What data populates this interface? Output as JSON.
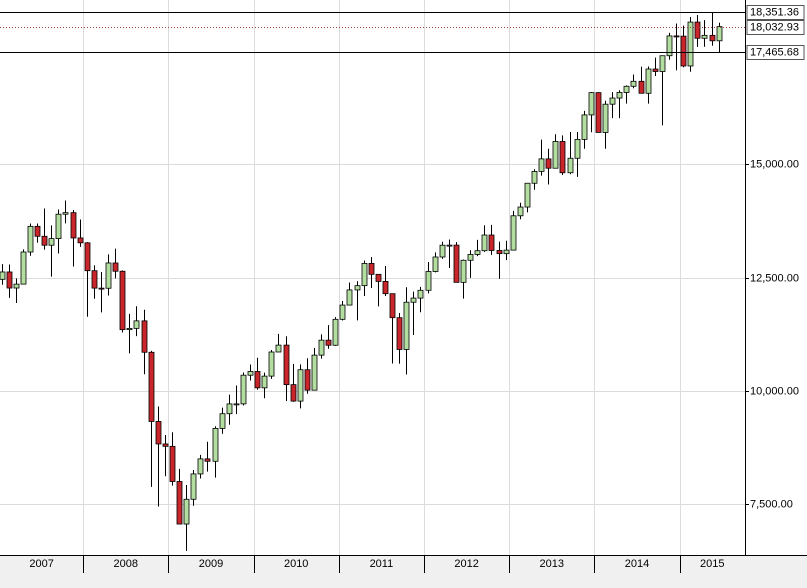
{
  "chart_data": {
    "type": "candlestick",
    "year_labels": [
      "2007",
      "2008",
      "2009",
      "2010",
      "2011",
      "2012",
      "2013",
      "2014",
      "2015"
    ],
    "open": [
      12460,
      12622,
      12268,
      12354,
      13062,
      13628,
      13409,
      13212,
      13358,
      13896,
      13930,
      13372,
      13265,
      12650,
      12266,
      12263,
      12820,
      12638,
      11350,
      11378,
      11544,
      10851,
      9325,
      8829,
      8776,
      8001,
      7063,
      7609,
      8168,
      8500,
      8447,
      9172,
      9496,
      9712,
      9713,
      10345,
      10428,
      10067,
      10325,
      10857,
      11009,
      10137,
      9774,
      10466,
      10015,
      10788,
      11118,
      11006,
      11578,
      11892,
      12226,
      12320,
      12811,
      12570,
      12414,
      12143,
      11614,
      10913,
      11955,
      12046,
      12218,
      12633,
      12952,
      13212,
      13214,
      12393,
      12880,
      13009,
      13091,
      13437,
      13096,
      13026,
      13104,
      13861,
      14054,
      14579,
      14840,
      15116,
      14910,
      15500,
      14810,
      15130,
      15546,
      16086,
      16577,
      15699,
      16322,
      16458,
      16581,
      16717,
      16827,
      16563,
      17098,
      17043,
      17391,
      17828,
      17823,
      17165,
      18133,
      17776,
      17841,
      17720
    ],
    "high": [
      12795,
      12786,
      12480,
      13120,
      13692,
      13692,
      14021,
      13650,
      14000,
      14198,
      13990,
      13778,
      13279,
      12767,
      12622,
      13010,
      13136,
      12657,
      11698,
      11867,
      11790,
      10882,
      9654,
      9026,
      9088,
      8280,
      7924,
      8254,
      8588,
      8877,
      9219,
      9630,
      9917,
      10119,
      10406,
      10580,
      10730,
      10401,
      10902,
      11258,
      11205,
      10594,
      10585,
      10719,
      10948,
      11245,
      11451,
      11625,
      11982,
      12391,
      12418,
      12876,
      12950,
      12570,
      12753,
      12143,
      11717,
      12284,
      12188,
      12293,
      12842,
      13055,
      13289,
      13338,
      13279,
      12898,
      13100,
      13331,
      13653,
      13661,
      13290,
      13311,
      13969,
      14149,
      14585,
      14888,
      15542,
      15340,
      15658,
      15634,
      15709,
      15710,
      16174,
      16588,
      16588,
      16398,
      16588,
      16631,
      16736,
      16978,
      17152,
      17153,
      17350,
      17395,
      17895,
      18103,
      18054,
      18244,
      18289,
      18175,
      18351.36,
      18118
    ],
    "low": [
      12341,
      12050,
      11939,
      12354,
      12980,
      13266,
      13115,
      12518,
      13029,
      13693,
      12743,
      13175,
      11634,
      12031,
      11731,
      12102,
      12480,
      11287,
      10827,
      11208,
      10365,
      7882,
      7449,
      8118,
      7909,
      7063,
      6470,
      7467,
      8066,
      8220,
      8087,
      9053,
      9252,
      9487,
      9676,
      10228,
      10025,
      9836,
      10265,
      10853,
      9774,
      9758,
      9614,
      9936,
      10014,
      10710,
      10929,
      10993,
      11551,
      11886,
      11555,
      12093,
      12269,
      11862,
      12093,
      10604,
      10597,
      10362,
      11231,
      11735,
      12150,
      12613,
      12910,
      12710,
      12391,
      12035,
      12492,
      12972,
      13066,
      12998,
      12471,
      12883,
      13104,
      13784,
      13937,
      14434,
      14746,
      14551,
      14910,
      14760,
      14777,
      14720,
      15340,
      15703,
      15699,
      15340,
      16016,
      16015,
      16334,
      16675,
      16563,
      16334,
      16945,
      15855,
      17301,
      17067,
      17136,
      17038,
      17585,
      17590,
      17610,
      17465.68
    ],
    "close": [
      12622,
      12268,
      12354,
      13062,
      13628,
      13409,
      13212,
      13358,
      13896,
      13930,
      13372,
      13265,
      12650,
      12266,
      12263,
      12820,
      12638,
      11350,
      11378,
      11544,
      10851,
      9325,
      8829,
      8776,
      8001,
      7063,
      7609,
      8168,
      8500,
      8447,
      9172,
      9496,
      9712,
      9713,
      10345,
      10428,
      10067,
      10325,
      10857,
      11009,
      10137,
      9774,
      10466,
      10015,
      10788,
      11118,
      11006,
      11578,
      11892,
      12226,
      12320,
      12811,
      12570,
      12414,
      12143,
      11614,
      10913,
      11955,
      12046,
      12218,
      12633,
      12952,
      13212,
      13214,
      12393,
      12880,
      13009,
      13091,
      13437,
      13096,
      13026,
      13104,
      13861,
      14054,
      14579,
      14840,
      15116,
      14910,
      15500,
      14810,
      15130,
      15546,
      16086,
      16577,
      15699,
      16322,
      16458,
      16581,
      16717,
      16827,
      16563,
      17098,
      17043,
      17391,
      17828,
      17823,
      17165,
      18133,
      17776,
      17841,
      17720,
      18032.93
    ],
    "ylim": [
      6380,
      18620
    ],
    "yticks": [
      {
        "value": 7500,
        "label": "7,500.00"
      },
      {
        "value": 10000,
        "label": "10,000.00"
      },
      {
        "value": 12500,
        "label": "12,500.00"
      },
      {
        "value": 15000,
        "label": "15,000.00"
      }
    ],
    "price_lines": [
      {
        "value": 18351.36,
        "label": "18,351.36",
        "style": "solid"
      },
      {
        "value": 18032.93,
        "label": "18,032.93",
        "style": "dotted"
      },
      {
        "value": 17465.68,
        "label": "17,465.68",
        "style": "solid"
      }
    ],
    "grid": true,
    "up_color": "#b2dfa0",
    "down_color": "#c8262b"
  }
}
